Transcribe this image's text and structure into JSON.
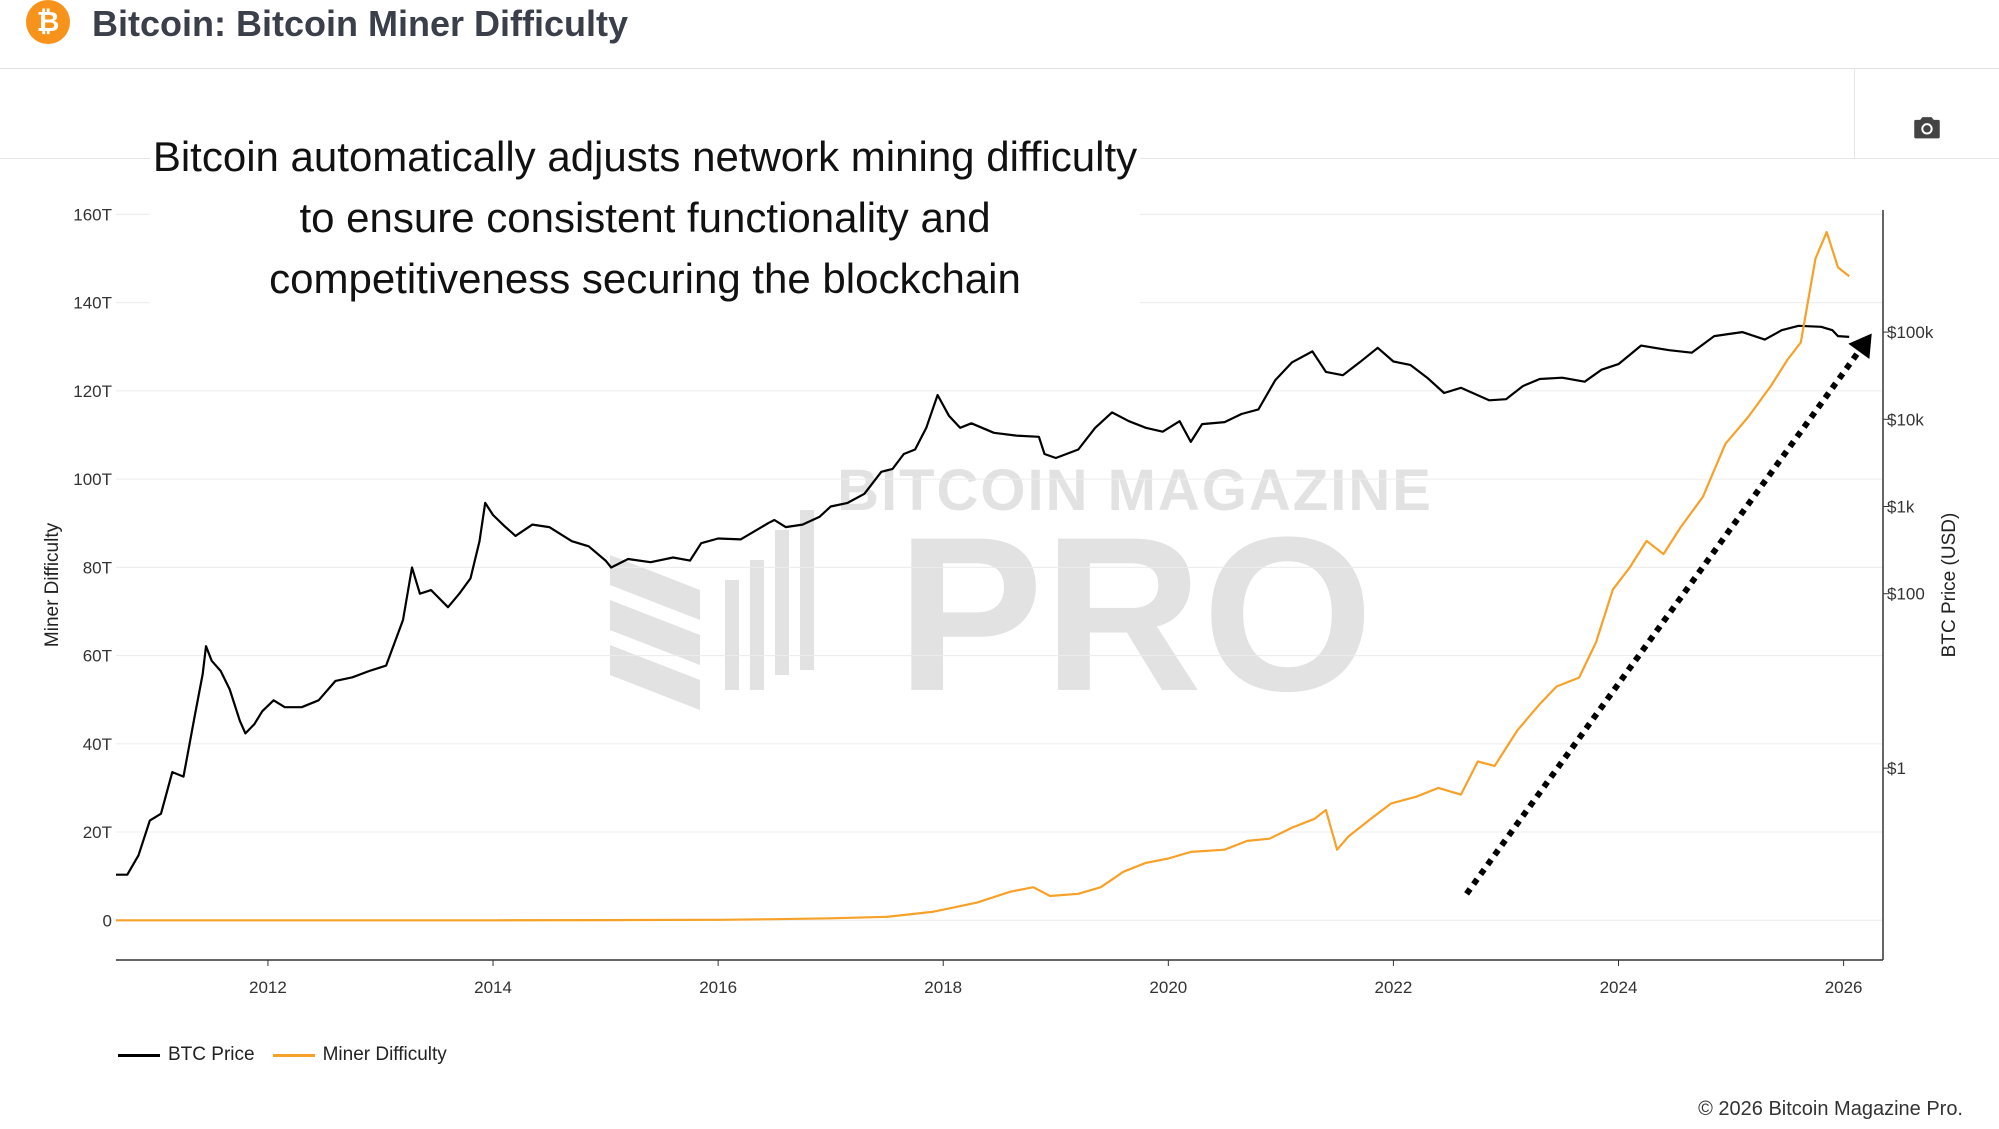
{
  "header": {
    "logo_symbol": "₿",
    "title": "Bitcoin: Bitcoin Miner Difficulty",
    "camera_icon": "camera-icon"
  },
  "annotation": "Bitcoin automatically adjusts network mining difficulty to ensure consistent functionality and competitiveness securing the blockchain",
  "watermark": {
    "line1": "BITCOIN MAGAZINE",
    "line2": "PRO"
  },
  "legend": [
    {
      "label": "BTC Price",
      "color": "#000000"
    },
    {
      "label": "Miner Difficulty",
      "color": "#f7a128"
    }
  ],
  "footer": "© 2026 Bitcoin Magazine Pro.",
  "chart_data": {
    "type": "line",
    "title": "Bitcoin: Bitcoin Miner Difficulty",
    "x_ticks": [
      "2012",
      "2014",
      "2016",
      "2018",
      "2020",
      "2022",
      "2024",
      "2026"
    ],
    "x_range": [
      2010.65,
      2026.35
    ],
    "y_left": {
      "label": "Miner Difficulty",
      "range": [
        -9,
        161
      ],
      "ticks": [
        0,
        20,
        40,
        60,
        80,
        100,
        120,
        140,
        160
      ],
      "tick_labels": [
        "0",
        "20T",
        "40T",
        "60T",
        "80T",
        "100T",
        "120T",
        "140T",
        "160T"
      ]
    },
    "y_right": {
      "label": "BTC Price (USD)",
      "scale": "log",
      "range_log10": [
        -2.2,
        6.4
      ],
      "ticks_log10": [
        0,
        2,
        3,
        4,
        5
      ],
      "tick_labels": [
        "$1",
        "$100",
        "$1k",
        "$10k",
        "$100k"
      ]
    },
    "series": [
      {
        "name": "BTC Price",
        "axis": "right",
        "color": "#000000",
        "points": [
          [
            2010.65,
            0.06
          ],
          [
            2010.75,
            0.06
          ],
          [
            2010.85,
            0.1
          ],
          [
            2010.95,
            0.25
          ],
          [
            2011.05,
            0.3
          ],
          [
            2011.15,
            0.9
          ],
          [
            2011.25,
            0.8
          ],
          [
            2011.35,
            4
          ],
          [
            2011.42,
            12
          ],
          [
            2011.45,
            25
          ],
          [
            2011.5,
            17
          ],
          [
            2011.58,
            13
          ],
          [
            2011.66,
            8
          ],
          [
            2011.75,
            3.5
          ],
          [
            2011.8,
            2.5
          ],
          [
            2011.88,
            3.2
          ],
          [
            2011.95,
            4.5
          ],
          [
            2012.05,
            6
          ],
          [
            2012.15,
            5
          ],
          [
            2012.3,
            5
          ],
          [
            2012.45,
            6
          ],
          [
            2012.6,
            10
          ],
          [
            2012.75,
            11
          ],
          [
            2012.9,
            13
          ],
          [
            2013.05,
            15
          ],
          [
            2013.2,
            50
          ],
          [
            2013.28,
            200
          ],
          [
            2013.35,
            100
          ],
          [
            2013.45,
            110
          ],
          [
            2013.6,
            70
          ],
          [
            2013.7,
            100
          ],
          [
            2013.8,
            150
          ],
          [
            2013.88,
            400
          ],
          [
            2013.93,
            1100
          ],
          [
            2014.0,
            800
          ],
          [
            2014.1,
            600
          ],
          [
            2014.2,
            460
          ],
          [
            2014.35,
            620
          ],
          [
            2014.5,
            580
          ],
          [
            2014.7,
            400
          ],
          [
            2014.85,
            350
          ],
          [
            2015.0,
            240
          ],
          [
            2015.05,
            200
          ],
          [
            2015.2,
            250
          ],
          [
            2015.4,
            230
          ],
          [
            2015.6,
            260
          ],
          [
            2015.75,
            240
          ],
          [
            2015.85,
            380
          ],
          [
            2016.0,
            430
          ],
          [
            2016.2,
            420
          ],
          [
            2016.45,
            650
          ],
          [
            2016.5,
            700
          ],
          [
            2016.6,
            580
          ],
          [
            2016.75,
            620
          ],
          [
            2016.9,
            760
          ],
          [
            2017.0,
            1000
          ],
          [
            2017.15,
            1100
          ],
          [
            2017.3,
            1400
          ],
          [
            2017.45,
            2500
          ],
          [
            2017.55,
            2700
          ],
          [
            2017.65,
            4000
          ],
          [
            2017.75,
            4500
          ],
          [
            2017.85,
            8000
          ],
          [
            2017.95,
            19000
          ],
          [
            2018.05,
            11000
          ],
          [
            2018.15,
            8000
          ],
          [
            2018.25,
            9000
          ],
          [
            2018.45,
            7000
          ],
          [
            2018.65,
            6500
          ],
          [
            2018.85,
            6300
          ],
          [
            2018.9,
            4000
          ],
          [
            2019.0,
            3600
          ],
          [
            2019.2,
            4500
          ],
          [
            2019.35,
            8000
          ],
          [
            2019.5,
            12000
          ],
          [
            2019.65,
            9500
          ],
          [
            2019.8,
            8000
          ],
          [
            2019.95,
            7200
          ],
          [
            2020.1,
            9500
          ],
          [
            2020.2,
            5500
          ],
          [
            2020.3,
            8800
          ],
          [
            2020.5,
            9300
          ],
          [
            2020.65,
            11500
          ],
          [
            2020.8,
            13000
          ],
          [
            2020.95,
            28000
          ],
          [
            2021.1,
            45000
          ],
          [
            2021.28,
            60000
          ],
          [
            2021.4,
            35000
          ],
          [
            2021.55,
            32000
          ],
          [
            2021.7,
            45000
          ],
          [
            2021.86,
            66000
          ],
          [
            2022.0,
            46000
          ],
          [
            2022.15,
            42000
          ],
          [
            2022.3,
            30000
          ],
          [
            2022.45,
            20000
          ],
          [
            2022.6,
            23000
          ],
          [
            2022.85,
            16500
          ],
          [
            2023.0,
            17000
          ],
          [
            2023.15,
            24000
          ],
          [
            2023.3,
            29000
          ],
          [
            2023.5,
            30000
          ],
          [
            2023.7,
            27000
          ],
          [
            2023.85,
            37000
          ],
          [
            2024.0,
            43000
          ],
          [
            2024.2,
            70000
          ],
          [
            2024.45,
            62000
          ],
          [
            2024.65,
            58000
          ],
          [
            2024.85,
            90000
          ],
          [
            2024.98,
            95000
          ],
          [
            2025.1,
            100000
          ],
          [
            2025.3,
            82000
          ],
          [
            2025.45,
            105000
          ],
          [
            2025.6,
            118000
          ],
          [
            2025.8,
            115000
          ],
          [
            2025.9,
            105000
          ],
          [
            2025.95,
            90000
          ],
          [
            2026.05,
            88000
          ]
        ]
      },
      {
        "name": "Miner Difficulty",
        "axis": "left",
        "color": "#f7a128",
        "points": [
          [
            2010.65,
            0
          ],
          [
            2012.0,
            0
          ],
          [
            2013.0,
            0
          ],
          [
            2014.0,
            0
          ],
          [
            2015.0,
            0.05
          ],
          [
            2016.0,
            0.12
          ],
          [
            2016.5,
            0.25
          ],
          [
            2017.0,
            0.45
          ],
          [
            2017.5,
            0.8
          ],
          [
            2017.9,
            1.9
          ],
          [
            2018.0,
            2.4
          ],
          [
            2018.3,
            4
          ],
          [
            2018.6,
            6.5
          ],
          [
            2018.8,
            7.5
          ],
          [
            2018.95,
            5.5
          ],
          [
            2019.2,
            6
          ],
          [
            2019.4,
            7.5
          ],
          [
            2019.6,
            11
          ],
          [
            2019.8,
            13
          ],
          [
            2020.0,
            14
          ],
          [
            2020.2,
            15.5
          ],
          [
            2020.5,
            16
          ],
          [
            2020.7,
            18
          ],
          [
            2020.9,
            18.5
          ],
          [
            2021.1,
            21
          ],
          [
            2021.3,
            23
          ],
          [
            2021.4,
            25
          ],
          [
            2021.5,
            16
          ],
          [
            2021.6,
            19
          ],
          [
            2021.8,
            23
          ],
          [
            2021.98,
            26.5
          ],
          [
            2022.2,
            28
          ],
          [
            2022.4,
            30
          ],
          [
            2022.6,
            28.5
          ],
          [
            2022.75,
            36
          ],
          [
            2022.9,
            35
          ],
          [
            2023.1,
            43
          ],
          [
            2023.3,
            49
          ],
          [
            2023.45,
            53
          ],
          [
            2023.65,
            55
          ],
          [
            2023.8,
            63
          ],
          [
            2023.95,
            75
          ],
          [
            2024.1,
            80
          ],
          [
            2024.25,
            86
          ],
          [
            2024.4,
            83
          ],
          [
            2024.55,
            89
          ],
          [
            2024.75,
            96
          ],
          [
            2024.95,
            108
          ],
          [
            2025.15,
            114
          ],
          [
            2025.35,
            121
          ],
          [
            2025.5,
            127
          ],
          [
            2025.62,
            131
          ],
          [
            2025.75,
            150
          ],
          [
            2025.85,
            156
          ],
          [
            2025.95,
            148
          ],
          [
            2026.05,
            146
          ]
        ]
      }
    ],
    "annotations": [
      {
        "type": "arrow",
        "style": "dotted",
        "from": [
          2022.65,
          6
        ],
        "to": [
          2026.25,
          133
        ]
      }
    ],
    "legend_position": "bottom-left",
    "grid": true
  }
}
